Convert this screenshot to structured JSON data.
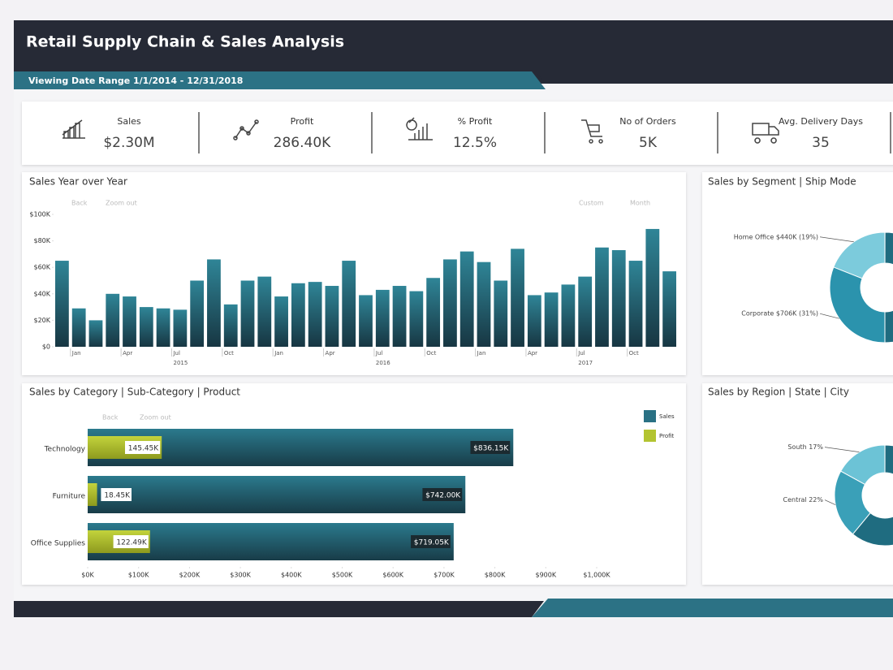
{
  "header": {
    "title": "Retail Supply Chain & Sales Analysis",
    "date_range": "Viewing Date Range 1/1/2014 - 12/31/2018"
  },
  "kpis": [
    {
      "label": "Sales",
      "value": "$2.30M"
    },
    {
      "label": "Profit",
      "value": "286.40K"
    },
    {
      "label": "% Profit",
      "value": "12.5%"
    },
    {
      "label": "No of Orders",
      "value": "5K"
    },
    {
      "label": "Avg. Delivery Days",
      "value": "35"
    }
  ],
  "chart_data": [
    {
      "type": "bar",
      "title": "Sales Year over Year",
      "toolbar": [
        "Back",
        "Zoom out",
        "Custom",
        "Month"
      ],
      "categories": [
        null,
        "Jan",
        null,
        null,
        "Apr",
        null,
        null,
        "Jul",
        null,
        null,
        "Oct",
        null,
        null,
        "Jan",
        null,
        null,
        "Apr",
        null,
        null,
        "Jul",
        null,
        null,
        "Oct",
        null,
        null,
        "Jan",
        null,
        null,
        "Apr",
        null,
        null,
        "Jul",
        null,
        null,
        "Oct",
        null,
        null
      ],
      "years": [
        "2015",
        "2016",
        "2017"
      ],
      "values": [
        65000,
        29000,
        20000,
        40000,
        38000,
        30000,
        29000,
        28000,
        50000,
        66000,
        32000,
        50000,
        53000,
        38000,
        48000,
        49000,
        46000,
        65000,
        39000,
        43000,
        46000,
        42000,
        52000,
        66000,
        72000,
        64000,
        50000,
        74000,
        39000,
        41000,
        47000,
        53000,
        75000,
        73000,
        65000,
        89000,
        57000
      ],
      "color": "#2b7a8c",
      "ylim": [
        0,
        100000
      ],
      "yticks": [
        {
          "value": 0,
          "label": "$0"
        },
        {
          "value": 20000,
          "label": "$20K"
        },
        {
          "value": 40000,
          "label": "$40K"
        },
        {
          "value": 60000,
          "label": "$60K"
        },
        {
          "value": 80000,
          "label": "$80K"
        },
        {
          "value": 100000,
          "label": "$100K"
        }
      ]
    },
    {
      "type": "donut",
      "title": "Sales by Segment | Ship Mode",
      "values": [
        19,
        31
      ],
      "value_labels": [
        "Home Office $440K (19%)",
        "Corporate $706K (31%)"
      ],
      "colors": [
        "#7ccbdc",
        "#2b93ad"
      ]
    },
    {
      "type": "hbar",
      "title": "Sales by Category | Sub-Category | Product",
      "toolbar": [
        "Back",
        "Zoom out"
      ],
      "categories": [
        "Technology",
        "Furniture",
        "Office Supplies"
      ],
      "series": [
        {
          "name": "Sales",
          "color": "#2a7184",
          "values": [
            836150,
            742000,
            719050
          ],
          "value_labels": [
            "$836.15K",
            "$742.00K",
            "$719.05K"
          ]
        },
        {
          "name": "Profit",
          "color": "#b3c431",
          "values": [
            145450,
            18450,
            122490
          ],
          "value_labels": [
            "145.45K",
            "18.45K",
            "122.49K"
          ]
        }
      ],
      "xlim": [
        0,
        1000000
      ],
      "xticks": [
        {
          "value": 0,
          "label": "$0K"
        },
        {
          "value": 100000,
          "label": "$100K"
        },
        {
          "value": 200000,
          "label": "$200K"
        },
        {
          "value": 300000,
          "label": "$300K"
        },
        {
          "value": 400000,
          "label": "$400K"
        },
        {
          "value": 500000,
          "label": "$500K"
        },
        {
          "value": 600000,
          "label": "$600K"
        },
        {
          "value": 700000,
          "label": "$700K"
        },
        {
          "value": 800000,
          "label": "$800K"
        },
        {
          "value": 900000,
          "label": "$900K"
        },
        {
          "value": 1000000,
          "label": "$1,000K"
        }
      ]
    },
    {
      "type": "donut",
      "title": "Sales by Region | State | City",
      "values": [
        17,
        22
      ],
      "value_labels": [
        "South 17%",
        "Central 22%"
      ],
      "colors": [
        "#6cc3d6",
        "#3aa0b8"
      ]
    }
  ]
}
